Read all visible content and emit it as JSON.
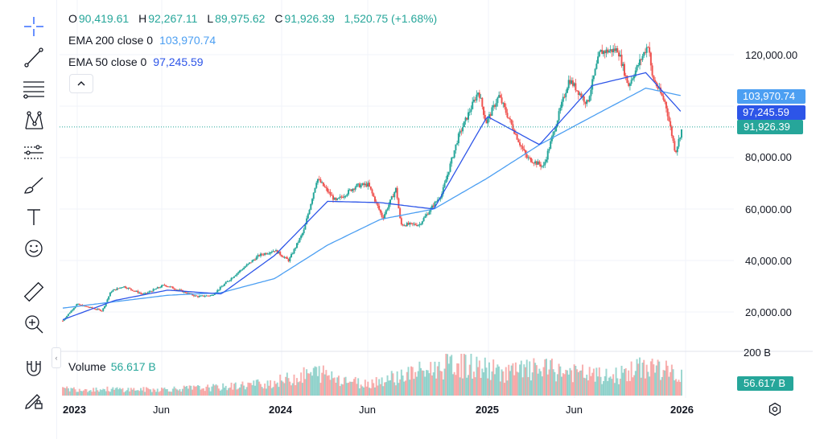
{
  "legend": {
    "ohlc": {
      "o_label": "O",
      "o_value": "90,419.61",
      "h_label": "H",
      "h_value": "92,267.11",
      "l_label": "L",
      "l_value": "89,975.62",
      "c_label": "C",
      "c_value": "91,926.39",
      "change": "1,520.75 (+1.68%)"
    },
    "ema200": {
      "label": "EMA 200 close 0",
      "value": "103,970.74"
    },
    "ema50": {
      "label": "EMA 50 close 0",
      "value": "97,245.59"
    },
    "volume": {
      "label": "Volume",
      "value": "56.617 B"
    }
  },
  "toolbar": {
    "tools": [
      "crosshair-icon",
      "trend-line-icon",
      "fib-retracement-icon",
      "pattern-icon",
      "prediction-icon",
      "brush-icon",
      "text-icon",
      "emoji-icon",
      "ruler-icon",
      "zoom-in-icon",
      "magnet-icon",
      "lock-drawings-icon"
    ]
  },
  "price_axis": {
    "ticks": [
      "120,000.00",
      "80,000.00",
      "60,000.00",
      "40,000.00",
      "20,000.00"
    ],
    "badges": {
      "ema200": "103,970.74",
      "ema50": "97,245.59",
      "last": "91,926.39"
    }
  },
  "volume_axis": {
    "tick": "200 B",
    "badge": "56.617 B"
  },
  "time_axis": {
    "ticks": [
      "2023",
      "Jun",
      "2024",
      "Jun",
      "2025",
      "Jun",
      "2026"
    ]
  },
  "colors": {
    "up": "#26a69a",
    "down": "#ef5350",
    "ema200": "#4c9ff2",
    "ema50": "#2d55e8",
    "last_badge": "#26a69a",
    "grid": "#f0f3fa"
  },
  "chart_data": {
    "type": "candlestick",
    "title": "",
    "x_unit": "date",
    "price_ticks": [
      20000,
      40000,
      60000,
      80000,
      120000
    ],
    "time_ticks": [
      "2023",
      "Jun",
      "2024",
      "Jun",
      "2025",
      "Jun",
      "2026"
    ],
    "last_price": 91926.39,
    "series": [
      {
        "name": "Price",
        "points": [
          {
            "x": "2023-01-01",
            "y": 16600
          },
          {
            "x": "2023-01-25",
            "y": 23000
          },
          {
            "x": "2023-03-10",
            "y": 20500
          },
          {
            "x": "2023-03-25",
            "y": 28000
          },
          {
            "x": "2023-04-15",
            "y": 30000
          },
          {
            "x": "2023-05-20",
            "y": 26800
          },
          {
            "x": "2023-06-25",
            "y": 30500
          },
          {
            "x": "2023-08-20",
            "y": 26000
          },
          {
            "x": "2023-09-15",
            "y": 26500
          },
          {
            "x": "2023-10-25",
            "y": 34500
          },
          {
            "x": "2023-12-05",
            "y": 42000
          },
          {
            "x": "2024-01-01",
            "y": 44000
          },
          {
            "x": "2024-01-25",
            "y": 40000
          },
          {
            "x": "2024-02-20",
            "y": 51500
          },
          {
            "x": "2024-03-14",
            "y": 72000
          },
          {
            "x": "2024-04-15",
            "y": 63000
          },
          {
            "x": "2024-05-20",
            "y": 69000
          },
          {
            "x": "2024-06-10",
            "y": 69500
          },
          {
            "x": "2024-07-05",
            "y": 56500
          },
          {
            "x": "2024-07-28",
            "y": 68000
          },
          {
            "x": "2024-08-05",
            "y": 54000
          },
          {
            "x": "2024-09-06",
            "y": 54000
          },
          {
            "x": "2024-10-15",
            "y": 66000
          },
          {
            "x": "2024-11-12",
            "y": 88000
          },
          {
            "x": "2024-12-17",
            "y": 106000
          },
          {
            "x": "2024-12-30",
            "y": 93500
          },
          {
            "x": "2025-01-21",
            "y": 104000
          },
          {
            "x": "2025-02-25",
            "y": 86000
          },
          {
            "x": "2025-03-10",
            "y": 80000
          },
          {
            "x": "2025-04-08",
            "y": 76500
          },
          {
            "x": "2025-05-22",
            "y": 110500
          },
          {
            "x": "2025-06-22",
            "y": 101000
          },
          {
            "x": "2025-07-14",
            "y": 121000
          },
          {
            "x": "2025-08-14",
            "y": 122000
          },
          {
            "x": "2025-09-01",
            "y": 108000
          },
          {
            "x": "2025-10-06",
            "y": 124500
          },
          {
            "x": "2025-10-11",
            "y": 112000
          },
          {
            "x": "2025-11-04",
            "y": 101000
          },
          {
            "x": "2025-11-21",
            "y": 82000
          },
          {
            "x": "2025-12-03",
            "y": 91926
          }
        ]
      },
      {
        "name": "EMA 200 close 0",
        "points": [
          {
            "x": "2023-01-01",
            "y": 21500
          },
          {
            "x": "2023-04-01",
            "y": 24000
          },
          {
            "x": "2023-07-01",
            "y": 26500
          },
          {
            "x": "2023-10-01",
            "y": 27500
          },
          {
            "x": "2024-01-01",
            "y": 33000
          },
          {
            "x": "2024-04-01",
            "y": 46000
          },
          {
            "x": "2024-07-01",
            "y": 56000
          },
          {
            "x": "2024-10-01",
            "y": 60000
          },
          {
            "x": "2025-01-01",
            "y": 72000
          },
          {
            "x": "2025-04-01",
            "y": 85000
          },
          {
            "x": "2025-07-01",
            "y": 96000
          },
          {
            "x": "2025-10-01",
            "y": 107000
          },
          {
            "x": "2025-12-03",
            "y": 103970
          }
        ]
      },
      {
        "name": "EMA 50 close 0",
        "points": [
          {
            "x": "2023-01-01",
            "y": 17000
          },
          {
            "x": "2023-04-01",
            "y": 24500
          },
          {
            "x": "2023-07-01",
            "y": 28500
          },
          {
            "x": "2023-10-01",
            "y": 27000
          },
          {
            "x": "2024-01-01",
            "y": 42000
          },
          {
            "x": "2024-04-01",
            "y": 63000
          },
          {
            "x": "2024-07-01",
            "y": 62500
          },
          {
            "x": "2024-10-01",
            "y": 60000
          },
          {
            "x": "2025-01-01",
            "y": 96000
          },
          {
            "x": "2025-04-01",
            "y": 85000
          },
          {
            "x": "2025-07-01",
            "y": 108000
          },
          {
            "x": "2025-10-01",
            "y": 113000
          },
          {
            "x": "2025-12-03",
            "y": 97245
          }
        ]
      }
    ],
    "volume": {
      "name": "Volume",
      "last": "56.617 B",
      "points": [
        {
          "x": "2023-01-01",
          "y": 20
        },
        {
          "x": "2023-06-01",
          "y": 18
        },
        {
          "x": "2023-10-01",
          "y": 25
        },
        {
          "x": "2024-01-01",
          "y": 40
        },
        {
          "x": "2024-03-15",
          "y": 70
        },
        {
          "x": "2024-06-01",
          "y": 35
        },
        {
          "x": "2024-08-05",
          "y": 60
        },
        {
          "x": "2024-11-12",
          "y": 95
        },
        {
          "x": "2025-02-01",
          "y": 70
        },
        {
          "x": "2025-04-07",
          "y": 80
        },
        {
          "x": "2025-08-01",
          "y": 55
        },
        {
          "x": "2025-10-10",
          "y": 90
        },
        {
          "x": "2025-12-03",
          "y": 56.617
        }
      ]
    }
  }
}
